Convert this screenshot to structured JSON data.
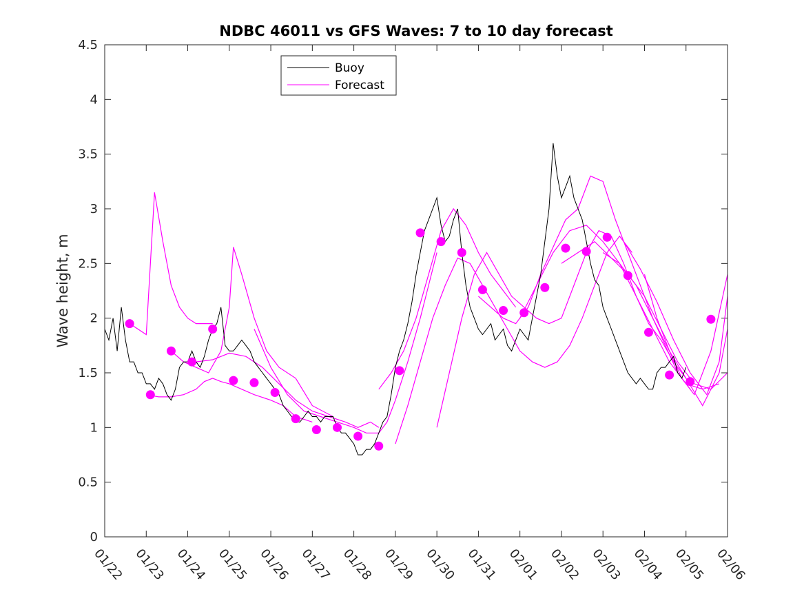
{
  "chart_data": {
    "type": "line",
    "title": "NDBC 46011 vs GFS Waves: 7 to 10 day forecast",
    "xlabel": "",
    "ylabel": "Wave height, m",
    "x_tick_labels": [
      "01/22",
      "01/23",
      "01/24",
      "01/25",
      "01/26",
      "01/27",
      "01/28",
      "01/29",
      "01/30",
      "01/31",
      "02/01",
      "02/02",
      "02/03",
      "02/04",
      "02/05",
      "02/06"
    ],
    "xlim_days": [
      0,
      15
    ],
    "ylim": [
      0,
      4.5
    ],
    "y_ticks": [
      0,
      0.5,
      1,
      1.5,
      2,
      2.5,
      3,
      3.5,
      4,
      4.5
    ],
    "y_tick_labels": [
      "0",
      "0.5",
      "1",
      "1.5",
      "2",
      "2.5",
      "3",
      "3.5",
      "4",
      "4.5"
    ],
    "grid": false,
    "legend": {
      "position": "top-left",
      "entries": [
        {
          "label": "Buoy",
          "color": "#000000"
        },
        {
          "label": "Forecast",
          "color": "#ff00ff"
        }
      ]
    },
    "series": [
      {
        "name": "Buoy",
        "color": "#000000",
        "x_days": [
          0,
          0.1,
          0.2,
          0.3,
          0.4,
          0.5,
          0.6,
          0.7,
          0.8,
          0.9,
          1.0,
          1.1,
          1.2,
          1.3,
          1.4,
          1.5,
          1.6,
          1.7,
          1.8,
          1.9,
          2.0,
          2.1,
          2.2,
          2.3,
          2.4,
          2.5,
          2.6,
          2.7,
          2.8,
          2.9,
          3.0,
          3.1,
          3.2,
          3.3,
          3.4,
          3.5,
          3.6,
          3.7,
          3.8,
          3.9,
          4.0,
          4.1,
          4.2,
          4.3,
          4.4,
          4.5,
          4.6,
          4.7,
          4.8,
          4.9,
          5.0,
          5.1,
          5.2,
          5.3,
          5.4,
          5.5,
          5.6,
          5.7,
          5.8,
          5.9,
          6.0,
          6.1,
          6.2,
          6.3,
          6.4,
          6.5,
          6.6,
          6.7,
          6.8,
          6.9,
          7.0,
          7.1,
          7.2,
          7.3,
          7.4,
          7.5,
          7.6,
          7.7,
          7.8,
          7.9,
          8.0,
          8.1,
          8.2,
          8.3,
          8.4,
          8.5,
          8.6,
          8.7,
          8.8,
          8.9,
          9.0,
          9.1,
          9.2,
          9.3,
          9.4,
          9.5,
          9.6,
          9.7,
          9.8,
          9.9,
          10.0,
          10.1,
          10.2,
          10.3,
          10.4,
          10.5,
          10.6,
          10.7,
          10.8,
          10.9,
          11.0,
          11.1,
          11.2,
          11.3,
          11.4,
          11.5,
          11.6,
          11.7,
          11.8,
          11.9,
          12.0,
          12.1,
          12.2,
          12.3,
          12.4,
          12.5,
          12.6,
          12.7,
          12.8,
          12.9,
          13.0,
          13.1,
          13.2,
          13.3,
          13.4,
          13.5,
          13.6,
          13.7,
          13.8,
          13.9,
          14.0
        ],
        "values": [
          1.9,
          1.8,
          2.0,
          1.7,
          2.1,
          1.8,
          1.6,
          1.6,
          1.5,
          1.5,
          1.4,
          1.4,
          1.35,
          1.45,
          1.4,
          1.3,
          1.25,
          1.35,
          1.55,
          1.6,
          1.6,
          1.7,
          1.6,
          1.55,
          1.65,
          1.8,
          1.9,
          1.95,
          2.1,
          1.75,
          1.7,
          1.7,
          1.75,
          1.8,
          1.75,
          1.7,
          1.6,
          1.55,
          1.5,
          1.45,
          1.4,
          1.35,
          1.3,
          1.2,
          1.15,
          1.1,
          1.05,
          1.05,
          1.1,
          1.15,
          1.1,
          1.1,
          1.05,
          1.1,
          1.1,
          1.1,
          1.0,
          0.95,
          0.95,
          0.9,
          0.85,
          0.75,
          0.75,
          0.8,
          0.8,
          0.85,
          0.95,
          1.05,
          1.1,
          1.3,
          1.55,
          1.7,
          1.8,
          1.95,
          2.15,
          2.4,
          2.6,
          2.8,
          2.9,
          3.0,
          3.1,
          2.85,
          2.7,
          2.75,
          2.9,
          3.0,
          2.6,
          2.3,
          2.1,
          2.0,
          1.9,
          1.85,
          1.9,
          1.95,
          1.8,
          1.85,
          1.9,
          1.75,
          1.7,
          1.8,
          1.9,
          1.85,
          1.8,
          2.0,
          2.2,
          2.4,
          2.7,
          3.0,
          3.6,
          3.3,
          3.1,
          3.2,
          3.3,
          3.1,
          3.0,
          2.9,
          2.7,
          2.5,
          2.35,
          2.3,
          2.1,
          2.0,
          1.9,
          1.8,
          1.7,
          1.6,
          1.5,
          1.45,
          1.4,
          1.45,
          1.4,
          1.35,
          1.35,
          1.5,
          1.55,
          1.55,
          1.6,
          1.65,
          1.5,
          1.45,
          1.55
        ]
      },
      {
        "name": "Forecast",
        "color": "#ff00ff",
        "runs": [
          {
            "x_days": [
              0.6,
              0.8,
              1.0,
              1.2,
              1.4,
              1.6,
              1.8,
              2.0,
              2.2,
              2.4,
              2.6
            ],
            "values": [
              1.95,
              1.9,
              1.85,
              3.15,
              2.7,
              2.3,
              2.1,
              2.0,
              1.95,
              1.95,
              1.95
            ]
          },
          {
            "x_days": [
              1.0,
              1.3,
              1.6,
              1.9,
              2.2,
              2.4,
              2.6,
              2.8,
              3.0,
              3.3,
              3.6,
              4.0,
              4.3,
              4.6,
              5.0
            ],
            "values": [
              1.3,
              1.28,
              1.28,
              1.3,
              1.35,
              1.42,
              1.45,
              1.42,
              1.4,
              1.35,
              1.3,
              1.25,
              1.2,
              1.1,
              1.05
            ]
          },
          {
            "x_days": [
              1.6,
              1.9,
              2.2,
              2.5,
              2.8,
              3.0,
              3.1,
              3.3,
              3.6,
              3.9,
              4.2,
              4.6,
              5.0,
              5.5
            ],
            "values": [
              1.7,
              1.6,
              1.55,
              1.5,
              1.7,
              2.1,
              2.65,
              2.4,
              2.0,
              1.7,
              1.55,
              1.45,
              1.2,
              1.1
            ]
          },
          {
            "x_days": [
              2.2,
              2.6,
              3.0,
              3.4,
              3.8,
              4.2,
              4.6,
              5.0,
              5.4,
              5.8,
              6.1,
              6.4,
              6.6
            ],
            "values": [
              1.6,
              1.62,
              1.68,
              1.65,
              1.55,
              1.4,
              1.25,
              1.15,
              1.1,
              1.05,
              1.0,
              1.05,
              1.0
            ]
          },
          {
            "x_days": [
              3.6,
              4.0,
              4.4,
              4.8,
              5.2,
              5.6,
              6.0,
              6.3,
              6.6,
              6.8,
              7.0,
              7.3,
              7.6,
              7.8,
              8.0
            ],
            "values": [
              1.9,
              1.55,
              1.3,
              1.15,
              1.1,
              1.05,
              1.0,
              0.95,
              0.95,
              1.05,
              1.25,
              1.6,
              2.0,
              2.3,
              2.6
            ]
          },
          {
            "x_days": [
              6.6,
              6.9,
              7.2,
              7.5,
              7.8,
              8.1,
              8.4,
              8.7,
              9.0,
              9.3,
              9.6,
              9.9
            ],
            "values": [
              1.35,
              1.5,
              1.7,
              2.0,
              2.4,
              2.8,
              3.0,
              2.85,
              2.6,
              2.4,
              2.25,
              2.1
            ]
          },
          {
            "x_days": [
              7.0,
              7.3,
              7.6,
              7.9,
              8.2,
              8.5,
              8.8,
              9.1,
              9.4,
              9.7,
              10.0,
              10.3,
              10.6,
              10.9,
              11.2,
              11.5,
              11.8,
              12.1,
              12.4,
              12.7
            ],
            "values": [
              0.85,
              1.2,
              1.6,
              2.0,
              2.3,
              2.55,
              2.5,
              2.3,
              2.1,
              1.9,
              1.7,
              1.6,
              1.55,
              1.6,
              1.75,
              2.0,
              2.3,
              2.6,
              2.75,
              2.6
            ]
          },
          {
            "x_days": [
              8.0,
              8.3,
              8.6,
              8.9,
              9.2,
              9.5,
              9.8,
              10.1,
              10.4,
              10.7,
              11.0,
              11.3,
              11.6,
              11.9,
              12.2,
              12.5,
              12.8,
              13.1,
              13.4,
              13.7,
              14.0
            ],
            "values": [
              1.0,
              1.5,
              2.0,
              2.4,
              2.6,
              2.4,
              2.2,
              2.1,
              2.0,
              1.95,
              2.0,
              2.3,
              2.6,
              2.8,
              2.75,
              2.5,
              2.2,
              1.95,
              1.8,
              1.6,
              1.45
            ]
          },
          {
            "x_days": [
              9.0,
              9.3,
              9.6,
              9.9,
              10.2,
              10.5,
              10.8,
              11.1,
              11.4,
              11.7,
              12.0,
              12.3,
              12.6,
              12.9,
              13.2,
              13.5,
              13.8,
              14.1
            ],
            "values": [
              2.2,
              2.1,
              2.0,
              1.95,
              2.1,
              2.4,
              2.65,
              2.9,
              3.0,
              3.3,
              3.25,
              2.9,
              2.6,
              2.3,
              2.0,
              1.75,
              1.5,
              1.35
            ]
          },
          {
            "x_days": [
              10.0,
              10.4,
              10.8,
              11.2,
              11.6,
              12.0,
              12.4,
              12.8,
              13.2,
              13.6,
              14.0,
              14.4,
              14.8
            ],
            "values": [
              2.0,
              2.3,
              2.6,
              2.8,
              2.85,
              2.7,
              2.5,
              2.2,
              1.9,
              1.6,
              1.4,
              1.35,
              1.4
            ]
          },
          {
            "x_days": [
              11.0,
              11.4,
              11.8,
              12.2,
              12.6,
              13.0,
              13.4,
              13.8,
              14.2,
              14.6,
              15.0
            ],
            "values": [
              2.5,
              2.6,
              2.7,
              2.55,
              2.4,
              2.2,
              1.9,
              1.6,
              1.4,
              1.35,
              1.5
            ]
          },
          {
            "x_days": [
              12.0,
              12.4,
              12.8,
              13.2,
              13.6,
              14.0,
              14.4,
              14.8,
              15.0
            ],
            "values": [
              2.6,
              2.5,
              2.3,
              2.0,
              1.7,
              1.45,
              1.2,
              1.5,
              1.9
            ]
          },
          {
            "x_days": [
              12.5,
              12.9,
              13.3,
              13.7,
              14.1,
              14.5,
              14.8,
              15.0
            ],
            "values": [
              2.7,
              2.45,
              2.15,
              1.8,
              1.5,
              1.3,
              1.6,
              2.2
            ]
          },
          {
            "x_days": [
              13.0,
              13.3,
              13.6,
              13.9,
              14.2,
              14.6,
              15.0
            ],
            "values": [
              2.4,
              2.0,
              1.7,
              1.45,
              1.3,
              1.7,
              2.4
            ]
          }
        ],
        "markers": {
          "x_days": [
            0.6,
            1.1,
            1.6,
            2.1,
            2.6,
            3.1,
            3.6,
            4.1,
            4.6,
            5.1,
            5.6,
            6.1,
            6.6,
            7.1,
            7.6,
            8.1,
            8.6,
            9.1,
            9.6,
            10.1,
            10.6,
            11.1,
            11.6,
            12.1,
            12.6,
            13.1,
            13.6,
            14.1,
            14.6
          ],
          "values": [
            1.95,
            1.3,
            1.7,
            1.6,
            1.9,
            1.43,
            1.41,
            1.32,
            1.08,
            0.98,
            1.0,
            0.92,
            0.83,
            1.52,
            2.78,
            2.7,
            2.6,
            2.26,
            2.07,
            2.05,
            2.28,
            2.64,
            2.61,
            2.74,
            2.39,
            1.87,
            1.48,
            1.42,
            1.99
          ]
        }
      }
    ]
  }
}
